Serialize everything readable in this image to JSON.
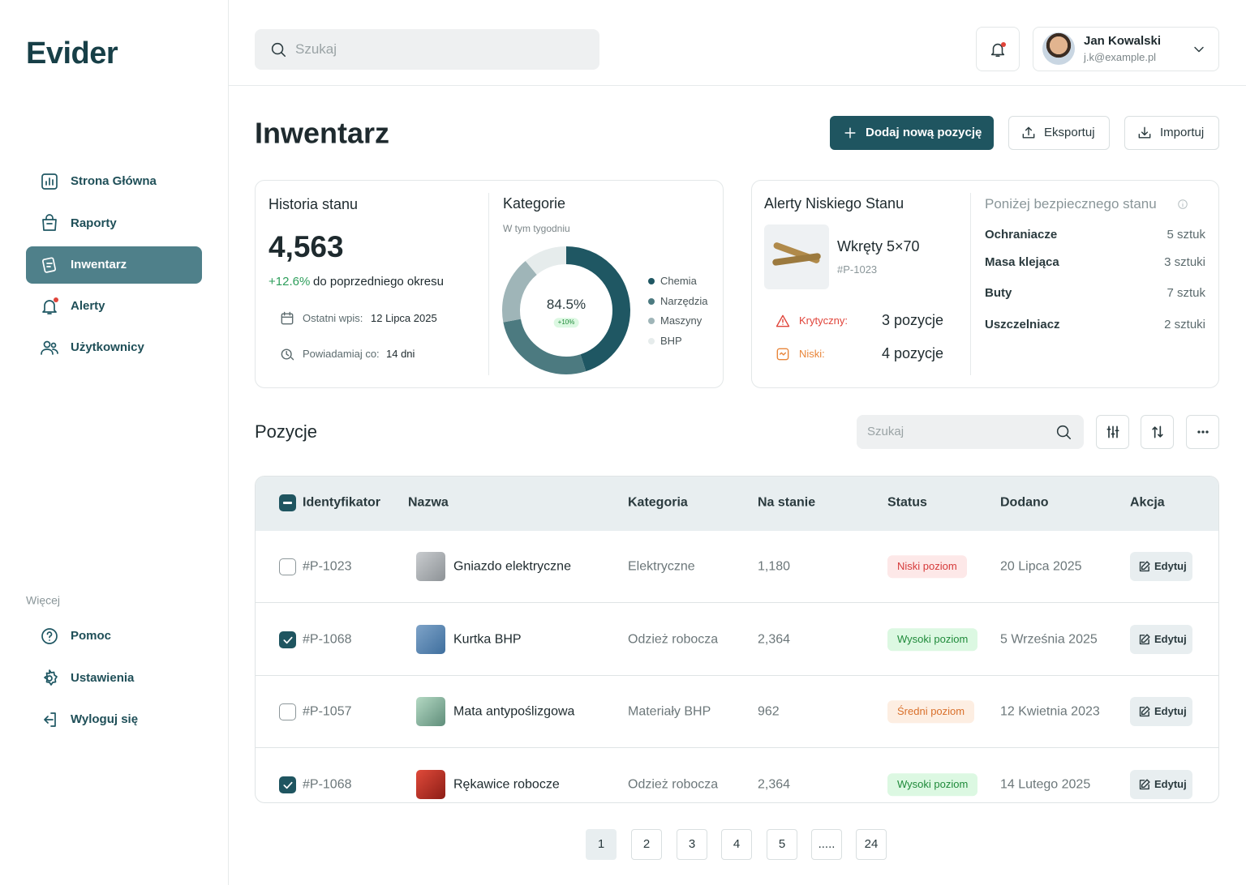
{
  "sidebar": {
    "logo": "Evider",
    "nav": [
      "Strona Główna",
      "Raporty",
      "Inwentarz",
      "Alerty",
      "Użytkownicy"
    ],
    "more_label": "Więcej",
    "more": [
      "Pomoc",
      "Ustawienia",
      "Wyloguj się"
    ]
  },
  "header": {
    "search_placeholder": "Szukaj",
    "user": {
      "name": "Jan Kowalski",
      "email": "j.k@example.pl"
    }
  },
  "page": {
    "title": "Inwentarz",
    "buttons": [
      "Dodaj nową pozycję",
      "Eksportuj",
      "Importuj"
    ]
  },
  "history": {
    "title": "Historia stanu",
    "value": "4,563",
    "change": "+12.6%",
    "change_text": "do poprzedniego okresu",
    "last_entry_label": "Ostatni wpis:",
    "last_entry": "12 Lipca 2025",
    "notify_label": "Powiadamiaj co:",
    "notify": "14 dni"
  },
  "chart_data": {
    "type": "donut",
    "title": "Kategorie",
    "subtitle": "W tym tygodniu",
    "center_label": "84.5%",
    "center_badge": "+10%",
    "categories": [
      "Chemia",
      "Narzędzia",
      "Maszyny",
      "BHP"
    ],
    "values": [
      45,
      27,
      17,
      11
    ],
    "colors": [
      "#1f5763",
      "#4c7a80",
      "#9fb5b8",
      "#e6ecec"
    ]
  },
  "alerts": {
    "title": "Alerty Niskiego Stanu",
    "item_name": "Wkręty 5×70",
    "item_id": "#P-1023",
    "rows": [
      {
        "label": "Krytyczny:",
        "value": "3 pozycje",
        "color": "#e0443a"
      },
      {
        "label": "Niski:",
        "value": "4 pozycje",
        "color": "#e8853a"
      }
    ],
    "below_title": "Poniżej bezpiecznego stanu",
    "below": [
      {
        "name": "Ochraniacze",
        "qty": "5 sztuk"
      },
      {
        "name": "Masa klejąca",
        "qty": "3 sztuki"
      },
      {
        "name": "Buty",
        "qty": "7 sztuk"
      },
      {
        "name": "Uszczelniacz",
        "qty": "2 sztuki"
      }
    ]
  },
  "positions": {
    "title": "Pozycje",
    "search_placeholder": "Szukaj"
  },
  "table": {
    "headers": [
      "Identyfikator",
      "Nazwa",
      "Kategoria",
      "Na stanie",
      "Status",
      "Dodano",
      "Akcja"
    ],
    "action_label": "Edytuj",
    "rows": [
      {
        "checked": false,
        "id": "#P-1023",
        "name": "Gniazdo elektryczne",
        "category": "Elektryczne",
        "stock": "1,180",
        "status": "Niski poziom",
        "status_color": "#d63b3b",
        "status_bg": "#fde8e8",
        "added": "20 Lipca 2025"
      },
      {
        "checked": true,
        "id": "#P-1068",
        "name": "Kurtka BHP",
        "category": "Odzież robocza",
        "stock": "2,364",
        "status": "Wysoki poziom",
        "status_color": "#1f8a3a",
        "status_bg": "#dcf8e2",
        "added": "5 Września 2025"
      },
      {
        "checked": false,
        "id": "#P-1057",
        "name": "Mata antypoślizgowa",
        "category": "Materiały BHP",
        "stock": "962",
        "status": "Średni poziom",
        "status_color": "#d9702b",
        "status_bg": "#fdeee2",
        "added": "12 Kwietnia 2023"
      },
      {
        "checked": true,
        "id": "#P-1068",
        "name": "Rękawice robocze",
        "category": "Odzież robocza",
        "stock": "2,364",
        "status": "Wysoki poziom",
        "status_color": "#1f8a3a",
        "status_bg": "#dcf8e2",
        "added": "14 Lutego 2025"
      }
    ]
  },
  "pagination": [
    "1",
    "2",
    "3",
    "4",
    "5",
    ".....",
    "24"
  ]
}
